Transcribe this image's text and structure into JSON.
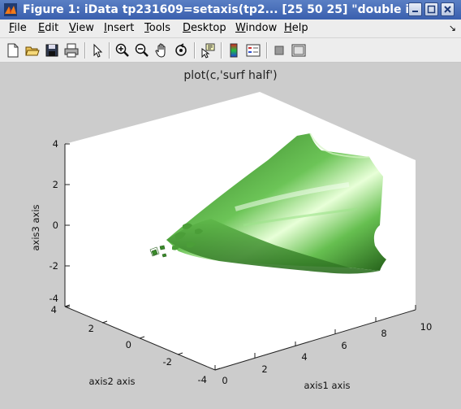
{
  "window": {
    "title": "Figure 1: iData tp231609=setaxis(tp2... [25  50  25] \"double i",
    "icon": "matlab-icon",
    "buttons": [
      "minimize-icon",
      "maximize-icon",
      "close-icon"
    ]
  },
  "menu": {
    "items": [
      {
        "first": "F",
        "rest": "ile"
      },
      {
        "first": "E",
        "rest": "dit"
      },
      {
        "first": "V",
        "rest": "iew"
      },
      {
        "first": "I",
        "rest": "nsert"
      },
      {
        "first": "T",
        "rest": "ools"
      },
      {
        "first": "D",
        "rest": "esktop"
      },
      {
        "first": "W",
        "rest": "indow"
      },
      {
        "first": "H",
        "rest": "elp"
      }
    ],
    "dock_arrow": "↘"
  },
  "toolbar": {
    "buttons": [
      "new-figure-icon",
      "open-file-icon",
      "save-icon",
      "print-icon",
      "edit-plot-icon",
      "zoom-in-icon",
      "zoom-out-icon",
      "pan-icon",
      "rotate-3d-icon",
      "data-cursor-icon",
      "colorbar-icon",
      "legend-icon",
      "hide-plot-tools-icon",
      "show-plot-tools-icon"
    ]
  },
  "plot": {
    "title": "plot(c,'surf half')",
    "xlabel": "axis1 axis",
    "ylabel": "axis2 axis",
    "zlabel": "axis3 axis",
    "x_ticks": [
      "0",
      "2",
      "4",
      "6",
      "8",
      "10"
    ],
    "y_ticks": [
      "-4",
      "-2",
      "0",
      "2",
      "4"
    ],
    "z_ticks": [
      "-4",
      "-2",
      "0",
      "2",
      "4"
    ],
    "surface_color": "#4fa33b",
    "highlight_color": "#e8ffd8"
  }
}
